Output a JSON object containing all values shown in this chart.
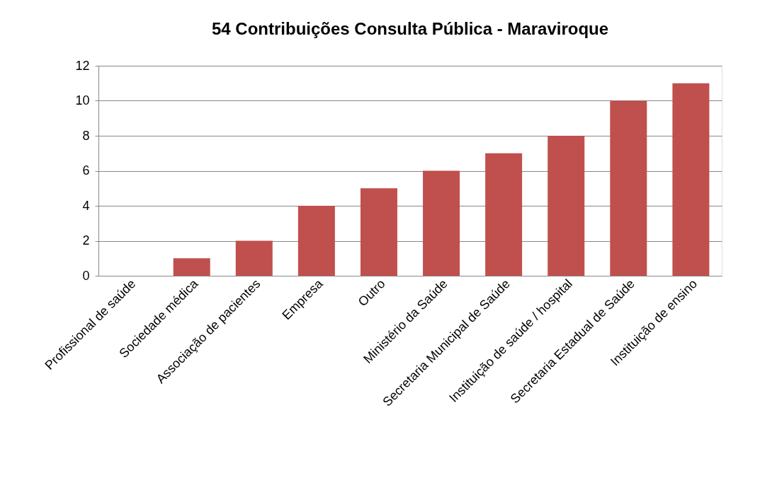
{
  "chart_data": {
    "type": "bar",
    "title": "54 Contribuições Consulta Pública - Maraviroque",
    "categories": [
      "Profissional de saúde",
      "Sociedade médica",
      "Associação de pacientes",
      "Empresa",
      "Outro",
      "Ministério da Saúde",
      "Secretaria Municipal de Saúde",
      "Instituição de saúde / hospital",
      "Secretaria Estadual de Saúde",
      "Instituição de ensino"
    ],
    "values": [
      0,
      1,
      2,
      4,
      5,
      6,
      7,
      8,
      10,
      11
    ],
    "color": "#c0504d",
    "ylim": [
      0,
      12
    ],
    "yticks": [
      0,
      2,
      4,
      6,
      8,
      10,
      12
    ],
    "grid": "y"
  }
}
